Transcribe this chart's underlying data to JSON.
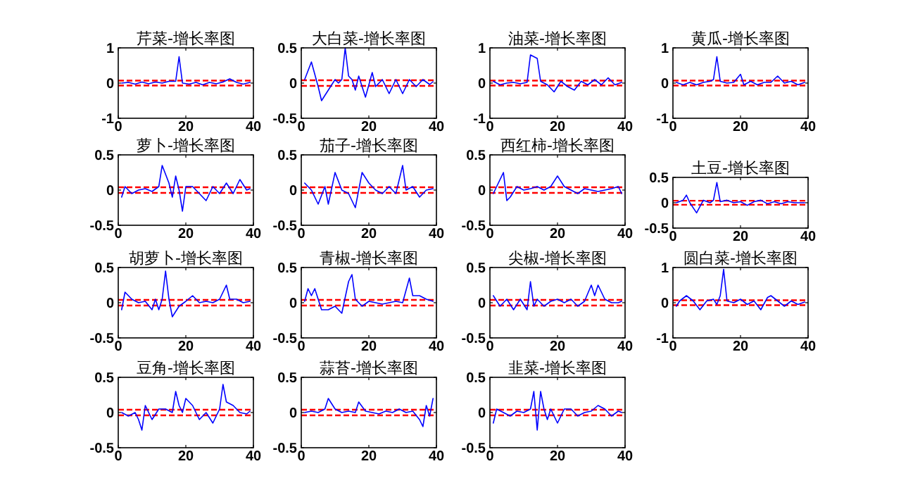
{
  "chart_data": [
    {
      "type": "line",
      "title": "芹菜-增长率图",
      "xlim": [
        0,
        40
      ],
      "xticks": [
        0,
        20,
        40
      ],
      "ylim": [
        -1,
        1
      ],
      "yticks": [
        -1,
        0,
        1
      ],
      "grid": false,
      "marker": "none",
      "line_style": "solid",
      "ref_lines": [
        {
          "axis": "y",
          "value": 0.07,
          "color": "#ff0000",
          "line_style": "dashed"
        },
        {
          "axis": "y",
          "value": -0.07,
          "color": "#ff0000",
          "line_style": "dashed"
        }
      ],
      "series": [
        {
          "color": "#0000ff",
          "x": [
            1,
            3,
            5,
            7,
            9,
            11,
            13,
            15,
            17,
            18,
            19,
            21,
            23,
            25,
            27,
            29,
            31,
            33,
            35,
            37,
            39
          ],
          "values": [
            0,
            0.02,
            -0.03,
            0.03,
            -0.02,
            0.03,
            0,
            0.05,
            0.05,
            0.75,
            0,
            -0.03,
            0.02,
            -0.05,
            0.02,
            -0.02,
            0.03,
            0.12,
            0.02,
            -0.03,
            0.02
          ]
        }
      ]
    },
    {
      "type": "line",
      "title": "大白菜-增长率图",
      "xlim": [
        0,
        40
      ],
      "xticks": [
        0,
        20,
        40
      ],
      "ylim": [
        -0.5,
        0.5
      ],
      "yticks": [
        -0.5,
        0,
        0.5
      ],
      "grid": false,
      "marker": "none",
      "line_style": "solid",
      "ref_lines": [
        {
          "axis": "y",
          "value": 0.04,
          "color": "#ff0000",
          "line_style": "dashed"
        },
        {
          "axis": "y",
          "value": -0.04,
          "color": "#ff0000",
          "line_style": "dashed"
        }
      ],
      "series": [
        {
          "color": "#0000ff",
          "x": [
            1,
            3,
            5,
            6,
            8,
            10,
            11,
            12,
            13,
            14,
            15,
            16,
            17,
            19,
            21,
            22,
            24,
            26,
            28,
            30,
            32,
            34,
            36,
            38,
            39
          ],
          "values": [
            0.05,
            0.3,
            -0.05,
            -0.25,
            -0.1,
            0.05,
            0,
            0.05,
            0.5,
            0.1,
            0.05,
            -0.1,
            0.1,
            -0.2,
            0.15,
            -0.05,
            0.05,
            -0.15,
            0.05,
            -0.15,
            0.05,
            -0.05,
            0.05,
            -0.02,
            0.02
          ]
        }
      ]
    },
    {
      "type": "line",
      "title": "油菜-增长率图",
      "xlim": [
        0,
        40
      ],
      "xticks": [
        0,
        20,
        40
      ],
      "ylim": [
        -1,
        1
      ],
      "yticks": [
        -1,
        0,
        1
      ],
      "grid": false,
      "marker": "none",
      "line_style": "solid",
      "ref_lines": [
        {
          "axis": "y",
          "value": 0.07,
          "color": "#ff0000",
          "line_style": "dashed"
        },
        {
          "axis": "y",
          "value": -0.07,
          "color": "#ff0000",
          "line_style": "dashed"
        }
      ],
      "series": [
        {
          "color": "#0000ff",
          "x": [
            1,
            3,
            5,
            7,
            9,
            11,
            12,
            14,
            15,
            17,
            19,
            21,
            23,
            25,
            27,
            29,
            31,
            33,
            35,
            37,
            39
          ],
          "values": [
            0.05,
            -0.05,
            0,
            0.02,
            -0.02,
            0.02,
            0.8,
            0.7,
            0.05,
            -0.05,
            -0.25,
            0.05,
            -0.1,
            -0.2,
            0.05,
            -0.05,
            0.1,
            -0.05,
            0.15,
            -0.05,
            0.02
          ]
        }
      ]
    },
    {
      "type": "line",
      "title": "黄瓜-增长率图",
      "xlim": [
        0,
        40
      ],
      "xticks": [
        0,
        20,
        40
      ],
      "ylim": [
        -1,
        1
      ],
      "yticks": [
        -1,
        0,
        1
      ],
      "grid": false,
      "marker": "none",
      "line_style": "solid",
      "ref_lines": [
        {
          "axis": "y",
          "value": 0.07,
          "color": "#ff0000",
          "line_style": "dashed"
        },
        {
          "axis": "y",
          "value": -0.07,
          "color": "#ff0000",
          "line_style": "dashed"
        }
      ],
      "series": [
        {
          "color": "#0000ff",
          "x": [
            1,
            3,
            5,
            7,
            9,
            11,
            12,
            13,
            14,
            16,
            18,
            20,
            21,
            23,
            25,
            27,
            29,
            31,
            33,
            35,
            37,
            39
          ],
          "values": [
            0.02,
            -0.05,
            0.02,
            -0.05,
            0.02,
            0.05,
            0.1,
            0.75,
            0.05,
            0,
            0.02,
            0.25,
            -0.05,
            0.05,
            -0.05,
            0.02,
            0.02,
            0.2,
            0,
            0.05,
            -0.05,
            0.02
          ]
        }
      ]
    },
    {
      "type": "line",
      "title": "萝卜-增长率图",
      "xlim": [
        0,
        40
      ],
      "xticks": [
        0,
        20,
        40
      ],
      "ylim": [
        -0.5,
        0.5
      ],
      "yticks": [
        -0.5,
        0,
        0.5
      ],
      "grid": false,
      "marker": "none",
      "line_style": "solid",
      "ref_lines": [
        {
          "axis": "y",
          "value": 0.04,
          "color": "#ff0000",
          "line_style": "dashed"
        },
        {
          "axis": "y",
          "value": -0.04,
          "color": "#ff0000",
          "line_style": "dashed"
        }
      ],
      "series": [
        {
          "color": "#0000ff",
          "x": [
            1,
            2,
            4,
            6,
            8,
            10,
            12,
            13,
            15,
            16,
            17,
            18,
            19,
            20,
            22,
            24,
            26,
            28,
            30,
            32,
            34,
            36,
            38,
            39
          ],
          "values": [
            -0.1,
            0.05,
            -0.05,
            0,
            0.02,
            -0.02,
            0.05,
            0.35,
            0.1,
            -0.1,
            0.2,
            0,
            -0.3,
            0.05,
            0.05,
            -0.05,
            -0.15,
            0.05,
            -0.05,
            0.1,
            -0.05,
            0.15,
            0,
            0.02
          ]
        }
      ]
    },
    {
      "type": "line",
      "title": "茄子-增长率图",
      "xlim": [
        0,
        40
      ],
      "xticks": [
        0,
        20,
        40
      ],
      "ylim": [
        -0.5,
        0.5
      ],
      "yticks": [
        -0.5,
        0,
        0.5
      ],
      "grid": false,
      "marker": "none",
      "line_style": "solid",
      "ref_lines": [
        {
          "axis": "y",
          "value": 0.04,
          "color": "#ff0000",
          "line_style": "dashed"
        },
        {
          "axis": "y",
          "value": -0.04,
          "color": "#ff0000",
          "line_style": "dashed"
        }
      ],
      "series": [
        {
          "color": "#0000ff",
          "x": [
            1,
            3,
            5,
            7,
            8,
            10,
            12,
            14,
            16,
            18,
            20,
            22,
            24,
            26,
            28,
            30,
            31,
            33,
            35,
            37,
            39
          ],
          "values": [
            0.1,
            0,
            -0.2,
            0.05,
            -0.2,
            0.25,
            0,
            -0.05,
            -0.25,
            0.25,
            0.1,
            0,
            -0.05,
            0.05,
            -0.05,
            0.35,
            0,
            0.05,
            -0.1,
            0,
            0.02
          ]
        }
      ]
    },
    {
      "type": "line",
      "title": "西红柿-增长率图",
      "xlim": [
        0,
        40
      ],
      "xticks": [
        0,
        20,
        40
      ],
      "ylim": [
        -0.5,
        0.5
      ],
      "yticks": [
        -0.5,
        0,
        0.5
      ],
      "grid": false,
      "marker": "none",
      "line_style": "solid",
      "ref_lines": [
        {
          "axis": "y",
          "value": 0.04,
          "color": "#ff0000",
          "line_style": "dashed"
        },
        {
          "axis": "y",
          "value": -0.04,
          "color": "#ff0000",
          "line_style": "dashed"
        }
      ],
      "series": [
        {
          "color": "#0000ff",
          "x": [
            1,
            2,
            4,
            5,
            6,
            8,
            10,
            12,
            14,
            16,
            18,
            20,
            22,
            24,
            26,
            28,
            30,
            32,
            34,
            36,
            38,
            39
          ],
          "values": [
            -0.05,
            0.05,
            0.25,
            -0.15,
            -0.1,
            0.05,
            0,
            0.02,
            0.05,
            0,
            0.05,
            0.2,
            0.05,
            0,
            -0.05,
            0.02,
            0,
            -0.02,
            0,
            0.02,
            0.05,
            -0.05
          ]
        }
      ]
    },
    {
      "type": "line",
      "title": "土豆-增长率图",
      "xlim": [
        0,
        40
      ],
      "xticks": [
        0,
        20,
        40
      ],
      "ylim": [
        -0.5,
        0.5
      ],
      "yticks": [
        -0.5,
        0,
        0.5
      ],
      "grid": false,
      "marker": "none",
      "line_style": "solid",
      "ref_lines": [
        {
          "axis": "y",
          "value": 0.04,
          "color": "#ff0000",
          "line_style": "dashed"
        },
        {
          "axis": "y",
          "value": -0.04,
          "color": "#ff0000",
          "line_style": "dashed"
        }
      ],
      "series": [
        {
          "color": "#0000ff",
          "x": [
            1,
            3,
            4,
            5,
            7,
            9,
            11,
            12,
            13,
            14,
            16,
            18,
            20,
            22,
            24,
            26,
            28,
            30,
            32,
            34,
            36,
            39
          ],
          "values": [
            0,
            0.05,
            0.15,
            0,
            -0.2,
            0.05,
            0,
            0.05,
            0.4,
            0.02,
            0.05,
            0,
            0.02,
            -0.05,
            0.02,
            0.05,
            -0.02,
            0.02,
            -0.02,
            0.02,
            0,
            0
          ]
        }
      ]
    },
    {
      "type": "line",
      "title": "胡萝卜-增长率图",
      "xlim": [
        0,
        40
      ],
      "xticks": [
        0,
        20,
        40
      ],
      "ylim": [
        -0.5,
        0.5
      ],
      "yticks": [
        -0.5,
        0,
        0.5
      ],
      "grid": false,
      "marker": "none",
      "line_style": "solid",
      "ref_lines": [
        {
          "axis": "y",
          "value": 0.04,
          "color": "#ff0000",
          "line_style": "dashed"
        },
        {
          "axis": "y",
          "value": -0.04,
          "color": "#ff0000",
          "line_style": "dashed"
        }
      ],
      "series": [
        {
          "color": "#0000ff",
          "x": [
            1,
            2,
            4,
            6,
            8,
            10,
            11,
            12,
            13,
            14,
            15,
            16,
            18,
            20,
            22,
            24,
            26,
            28,
            30,
            32,
            33,
            35,
            37,
            39
          ],
          "values": [
            -0.1,
            0.15,
            0.05,
            0,
            0.02,
            -0.1,
            0.05,
            -0.1,
            0.05,
            0.45,
            0.05,
            -0.2,
            -0.05,
            0.02,
            0.1,
            0,
            0.02,
            0,
            0.05,
            0.25,
            0.05,
            0.05,
            0,
            0.02
          ]
        }
      ]
    },
    {
      "type": "line",
      "title": "青椒-增长率图",
      "xlim": [
        0,
        40
      ],
      "xticks": [
        0,
        20,
        40
      ],
      "ylim": [
        -0.5,
        0.5
      ],
      "yticks": [
        -0.5,
        0,
        0.5
      ],
      "grid": false,
      "marker": "none",
      "line_style": "solid",
      "ref_lines": [
        {
          "axis": "y",
          "value": 0.04,
          "color": "#ff0000",
          "line_style": "dashed"
        },
        {
          "axis": "y",
          "value": -0.04,
          "color": "#ff0000",
          "line_style": "dashed"
        }
      ],
      "series": [
        {
          "color": "#0000ff",
          "x": [
            1,
            2,
            3,
            4,
            6,
            8,
            10,
            12,
            14,
            15,
            16,
            18,
            20,
            22,
            24,
            26,
            28,
            30,
            32,
            33,
            35,
            37,
            39
          ],
          "values": [
            0.02,
            0.2,
            0.1,
            0.2,
            -0.1,
            -0.1,
            -0.05,
            -0.15,
            0.3,
            0.4,
            0.05,
            -0.05,
            0.02,
            0,
            -0.02,
            0,
            0.02,
            0,
            0.35,
            0.1,
            0.1,
            0.05,
            0.02
          ]
        }
      ]
    },
    {
      "type": "line",
      "title": "尖椒-增长率图",
      "xlim": [
        0,
        40
      ],
      "xticks": [
        0,
        20,
        40
      ],
      "ylim": [
        -0.5,
        0.5
      ],
      "yticks": [
        -0.5,
        0,
        0.5
      ],
      "grid": false,
      "marker": "none",
      "line_style": "solid",
      "ref_lines": [
        {
          "axis": "y",
          "value": 0.04,
          "color": "#ff0000",
          "line_style": "dashed"
        },
        {
          "axis": "y",
          "value": -0.04,
          "color": "#ff0000",
          "line_style": "dashed"
        }
      ],
      "series": [
        {
          "color": "#0000ff",
          "x": [
            1,
            3,
            5,
            7,
            9,
            11,
            12,
            13,
            14,
            16,
            18,
            20,
            22,
            24,
            26,
            28,
            30,
            31,
            32,
            34,
            36,
            38,
            39
          ],
          "values": [
            0.1,
            -0.05,
            0.05,
            -0.1,
            0.05,
            -0.1,
            0.3,
            -0.05,
            0.05,
            -0.05,
            0.02,
            0.05,
            0,
            0.05,
            -0.05,
            0.02,
            0.25,
            0.1,
            0.25,
            0.05,
            0,
            0,
            0.02
          ]
        }
      ]
    },
    {
      "type": "line",
      "title": "圆白菜-增长率图",
      "xlim": [
        0,
        40
      ],
      "xticks": [
        0,
        20,
        40
      ],
      "ylim": [
        -1,
        1
      ],
      "yticks": [
        -1,
        0,
        1
      ],
      "grid": false,
      "marker": "none",
      "line_style": "solid",
      "ref_lines": [
        {
          "axis": "y",
          "value": 0.07,
          "color": "#ff0000",
          "line_style": "dashed"
        },
        {
          "axis": "y",
          "value": -0.07,
          "color": "#ff0000",
          "line_style": "dashed"
        }
      ],
      "series": [
        {
          "color": "#0000ff",
          "x": [
            1,
            2,
            4,
            6,
            8,
            10,
            12,
            13,
            14,
            15,
            16,
            18,
            20,
            22,
            24,
            26,
            28,
            29,
            31,
            33,
            35,
            37,
            39
          ],
          "values": [
            -0.1,
            0.05,
            0.2,
            0.05,
            -0.2,
            0.05,
            0.1,
            -0.05,
            0.2,
            0.95,
            0.05,
            0,
            0.1,
            -0.05,
            0.05,
            -0.2,
            0.15,
            0.2,
            0.05,
            -0.1,
            0.05,
            -0.05,
            0.02
          ]
        }
      ]
    },
    {
      "type": "line",
      "title": "豆角-增长率图",
      "xlim": [
        0,
        40
      ],
      "xticks": [
        0,
        20,
        40
      ],
      "ylim": [
        -0.5,
        0.5
      ],
      "yticks": [
        -0.5,
        0,
        0.5
      ],
      "grid": false,
      "marker": "none",
      "line_style": "solid",
      "ref_lines": [
        {
          "axis": "y",
          "value": 0.04,
          "color": "#ff0000",
          "line_style": "dashed"
        },
        {
          "axis": "y",
          "value": -0.04,
          "color": "#ff0000",
          "line_style": "dashed"
        }
      ],
      "series": [
        {
          "color": "#0000ff",
          "x": [
            1,
            3,
            5,
            6,
            7,
            8,
            10,
            12,
            14,
            16,
            17,
            18,
            19,
            20,
            22,
            24,
            26,
            28,
            30,
            31,
            32,
            34,
            36,
            38,
            39
          ],
          "values": [
            0,
            -0.05,
            0,
            -0.1,
            -0.25,
            0.1,
            -0.1,
            0.05,
            0.05,
            0,
            0.3,
            0.1,
            0,
            0.2,
            0.1,
            -0.1,
            0,
            -0.15,
            0.05,
            0.4,
            0.15,
            0.1,
            0,
            -0.02,
            0.02
          ]
        }
      ]
    },
    {
      "type": "line",
      "title": "蒜苔-增长率图",
      "xlim": [
        0,
        40
      ],
      "xticks": [
        0,
        20,
        40
      ],
      "ylim": [
        -0.5,
        0.5
      ],
      "yticks": [
        -0.5,
        0,
        0.5
      ],
      "grid": false,
      "marker": "none",
      "line_style": "solid",
      "ref_lines": [
        {
          "axis": "y",
          "value": 0.04,
          "color": "#ff0000",
          "line_style": "dashed"
        },
        {
          "axis": "y",
          "value": -0.04,
          "color": "#ff0000",
          "line_style": "dashed"
        }
      ],
      "series": [
        {
          "color": "#0000ff",
          "x": [
            1,
            3,
            5,
            7,
            8,
            10,
            12,
            14,
            16,
            17,
            19,
            21,
            23,
            25,
            27,
            29,
            31,
            33,
            35,
            36,
            37,
            38,
            39
          ],
          "values": [
            0,
            0.02,
            0,
            0.05,
            0.2,
            0.05,
            0,
            0.02,
            0,
            0.15,
            0.02,
            0,
            -0.02,
            0.02,
            0,
            0.05,
            0,
            0.02,
            -0.1,
            -0.2,
            0.1,
            -0.05,
            0.2
          ]
        }
      ]
    },
    {
      "type": "line",
      "title": "韭菜-增长率图",
      "xlim": [
        0,
        40
      ],
      "xticks": [
        0,
        20,
        40
      ],
      "ylim": [
        -0.5,
        0.5
      ],
      "yticks": [
        -0.5,
        0,
        0.5
      ],
      "grid": false,
      "marker": "none",
      "line_style": "solid",
      "ref_lines": [
        {
          "axis": "y",
          "value": 0.04,
          "color": "#ff0000",
          "line_style": "dashed"
        },
        {
          "axis": "y",
          "value": -0.04,
          "color": "#ff0000",
          "line_style": "dashed"
        }
      ],
      "series": [
        {
          "color": "#0000ff",
          "x": [
            1,
            2,
            4,
            6,
            8,
            10,
            12,
            13,
            14,
            15,
            16,
            17,
            18,
            20,
            22,
            24,
            26,
            28,
            30,
            32,
            34,
            36,
            38,
            39
          ],
          "values": [
            -0.15,
            0.05,
            0,
            -0.05,
            0.02,
            0,
            0.05,
            0.3,
            -0.25,
            0.3,
            0.05,
            -0.1,
            0.05,
            -0.15,
            0.05,
            0.05,
            -0.05,
            0,
            0.02,
            0.1,
            0.05,
            -0.05,
            0.02,
            0
          ]
        }
      ]
    }
  ]
}
